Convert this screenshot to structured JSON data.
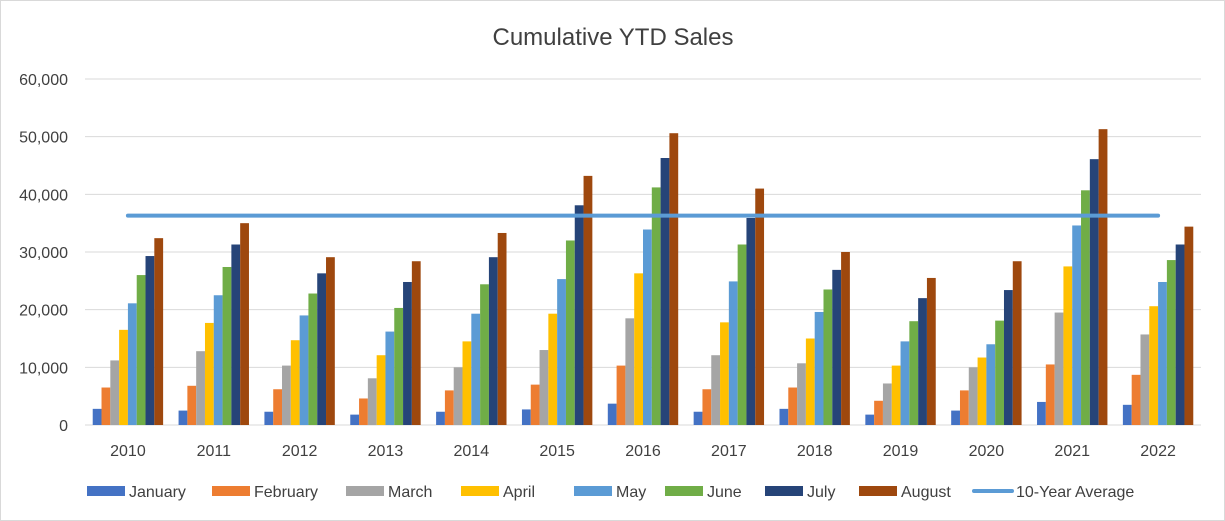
{
  "chart_data": {
    "type": "bar",
    "title": "Cumulative YTD Sales",
    "xlabel": "",
    "ylabel": "",
    "ylim": [
      0,
      60000
    ],
    "yticks": [
      0,
      10000,
      20000,
      30000,
      40000,
      50000,
      60000
    ],
    "ytick_labels": [
      "0",
      "10,000",
      "20,000",
      "30,000",
      "40,000",
      "50,000",
      "60,000"
    ],
    "grid": true,
    "legend_position": "bottom",
    "categories": [
      "2010",
      "2011",
      "2012",
      "2013",
      "2014",
      "2015",
      "2016",
      "2017",
      "2018",
      "2019",
      "2020",
      "2021",
      "2022"
    ],
    "series": [
      {
        "name": "January",
        "color": "#4472C4",
        "values": [
          2800,
          2500,
          2300,
          1800,
          2300,
          2700,
          3700,
          2300,
          2800,
          1800,
          2500,
          4000,
          3500
        ]
      },
      {
        "name": "February",
        "color": "#ED7D31",
        "values": [
          6500,
          6800,
          6200,
          4600,
          6000,
          7000,
          10300,
          6200,
          6500,
          4200,
          6000,
          10500,
          8700
        ]
      },
      {
        "name": "March",
        "color": "#A5A5A5",
        "values": [
          11200,
          12800,
          10300,
          8100,
          10000,
          13000,
          18500,
          12100,
          10700,
          7200,
          10000,
          19500,
          15700
        ]
      },
      {
        "name": "April",
        "color": "#FFC000",
        "values": [
          16500,
          17700,
          14700,
          12100,
          14500,
          19300,
          26300,
          17800,
          15000,
          10300,
          11700,
          27500,
          20600
        ]
      },
      {
        "name": "May",
        "color": "#5B9BD5",
        "values": [
          21100,
          22500,
          19000,
          16200,
          19300,
          25300,
          33900,
          24900,
          19600,
          14500,
          14000,
          34600,
          24800
        ]
      },
      {
        "name": "June",
        "color": "#70AD47",
        "values": [
          26000,
          27400,
          22800,
          20300,
          24400,
          32000,
          41200,
          31300,
          23500,
          18000,
          18100,
          40700,
          28600
        ]
      },
      {
        "name": "July",
        "color": "#264478",
        "values": [
          29300,
          31300,
          26300,
          24800,
          29100,
          38100,
          46300,
          35900,
          26900,
          22000,
          23400,
          46100,
          31300
        ]
      },
      {
        "name": "August",
        "color": "#9E480E",
        "values": [
          32400,
          35000,
          29100,
          28400,
          33300,
          43200,
          50600,
          41000,
          30000,
          25500,
          28400,
          51300,
          34400
        ]
      }
    ],
    "line_series": {
      "name": "10-Year Average",
      "color": "#5B9BD5",
      "value": 36300
    }
  }
}
